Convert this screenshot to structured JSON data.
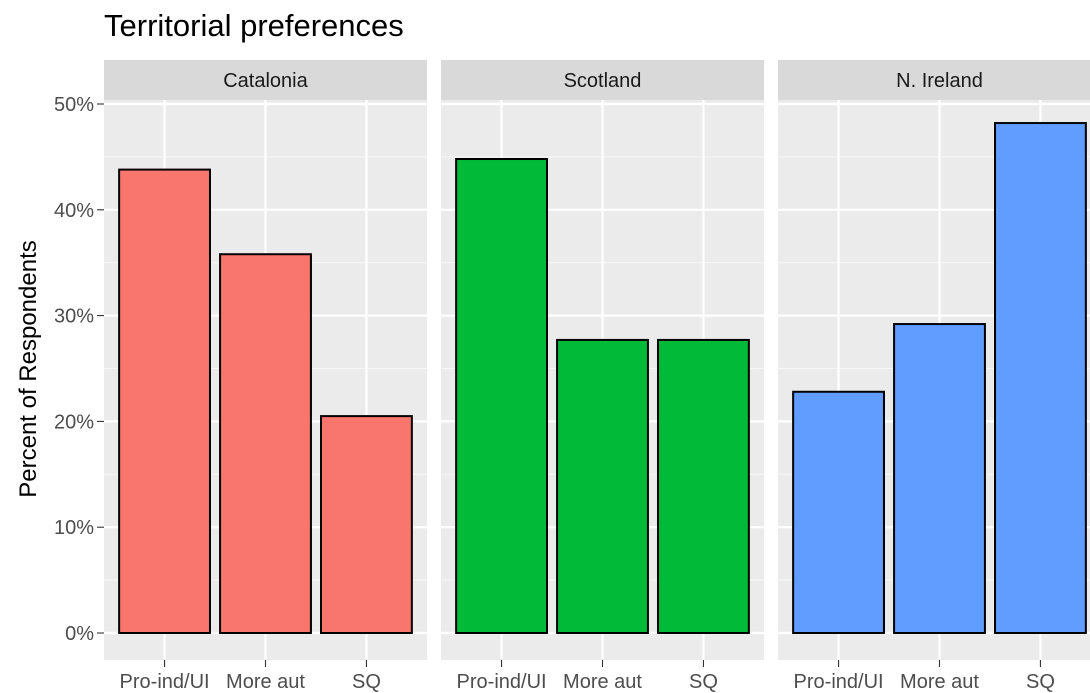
{
  "chart_data": {
    "type": "bar",
    "title": "Territorial preferences",
    "ylabel": "Percent of Respondents",
    "xlabel": "",
    "ylim": [
      0,
      0.5
    ],
    "yticks": [
      0,
      0.1,
      0.2,
      0.3,
      0.4,
      0.5
    ],
    "ytick_labels": [
      "0%",
      "10%",
      "20%",
      "30%",
      "40%",
      "50%"
    ],
    "categories": [
      "Pro-ind/UI",
      "More aut",
      "SQ"
    ],
    "grid": true,
    "legend": "none",
    "facets": [
      {
        "name": "Catalonia",
        "color": "#F8766D",
        "values": [
          0.438,
          0.358,
          0.205
        ]
      },
      {
        "name": "Scotland",
        "color": "#00BA38",
        "values": [
          0.448,
          0.277,
          0.277
        ]
      },
      {
        "name": "N. Ireland",
        "color": "#619CFF",
        "values": [
          0.228,
          0.292,
          0.482
        ]
      }
    ]
  }
}
